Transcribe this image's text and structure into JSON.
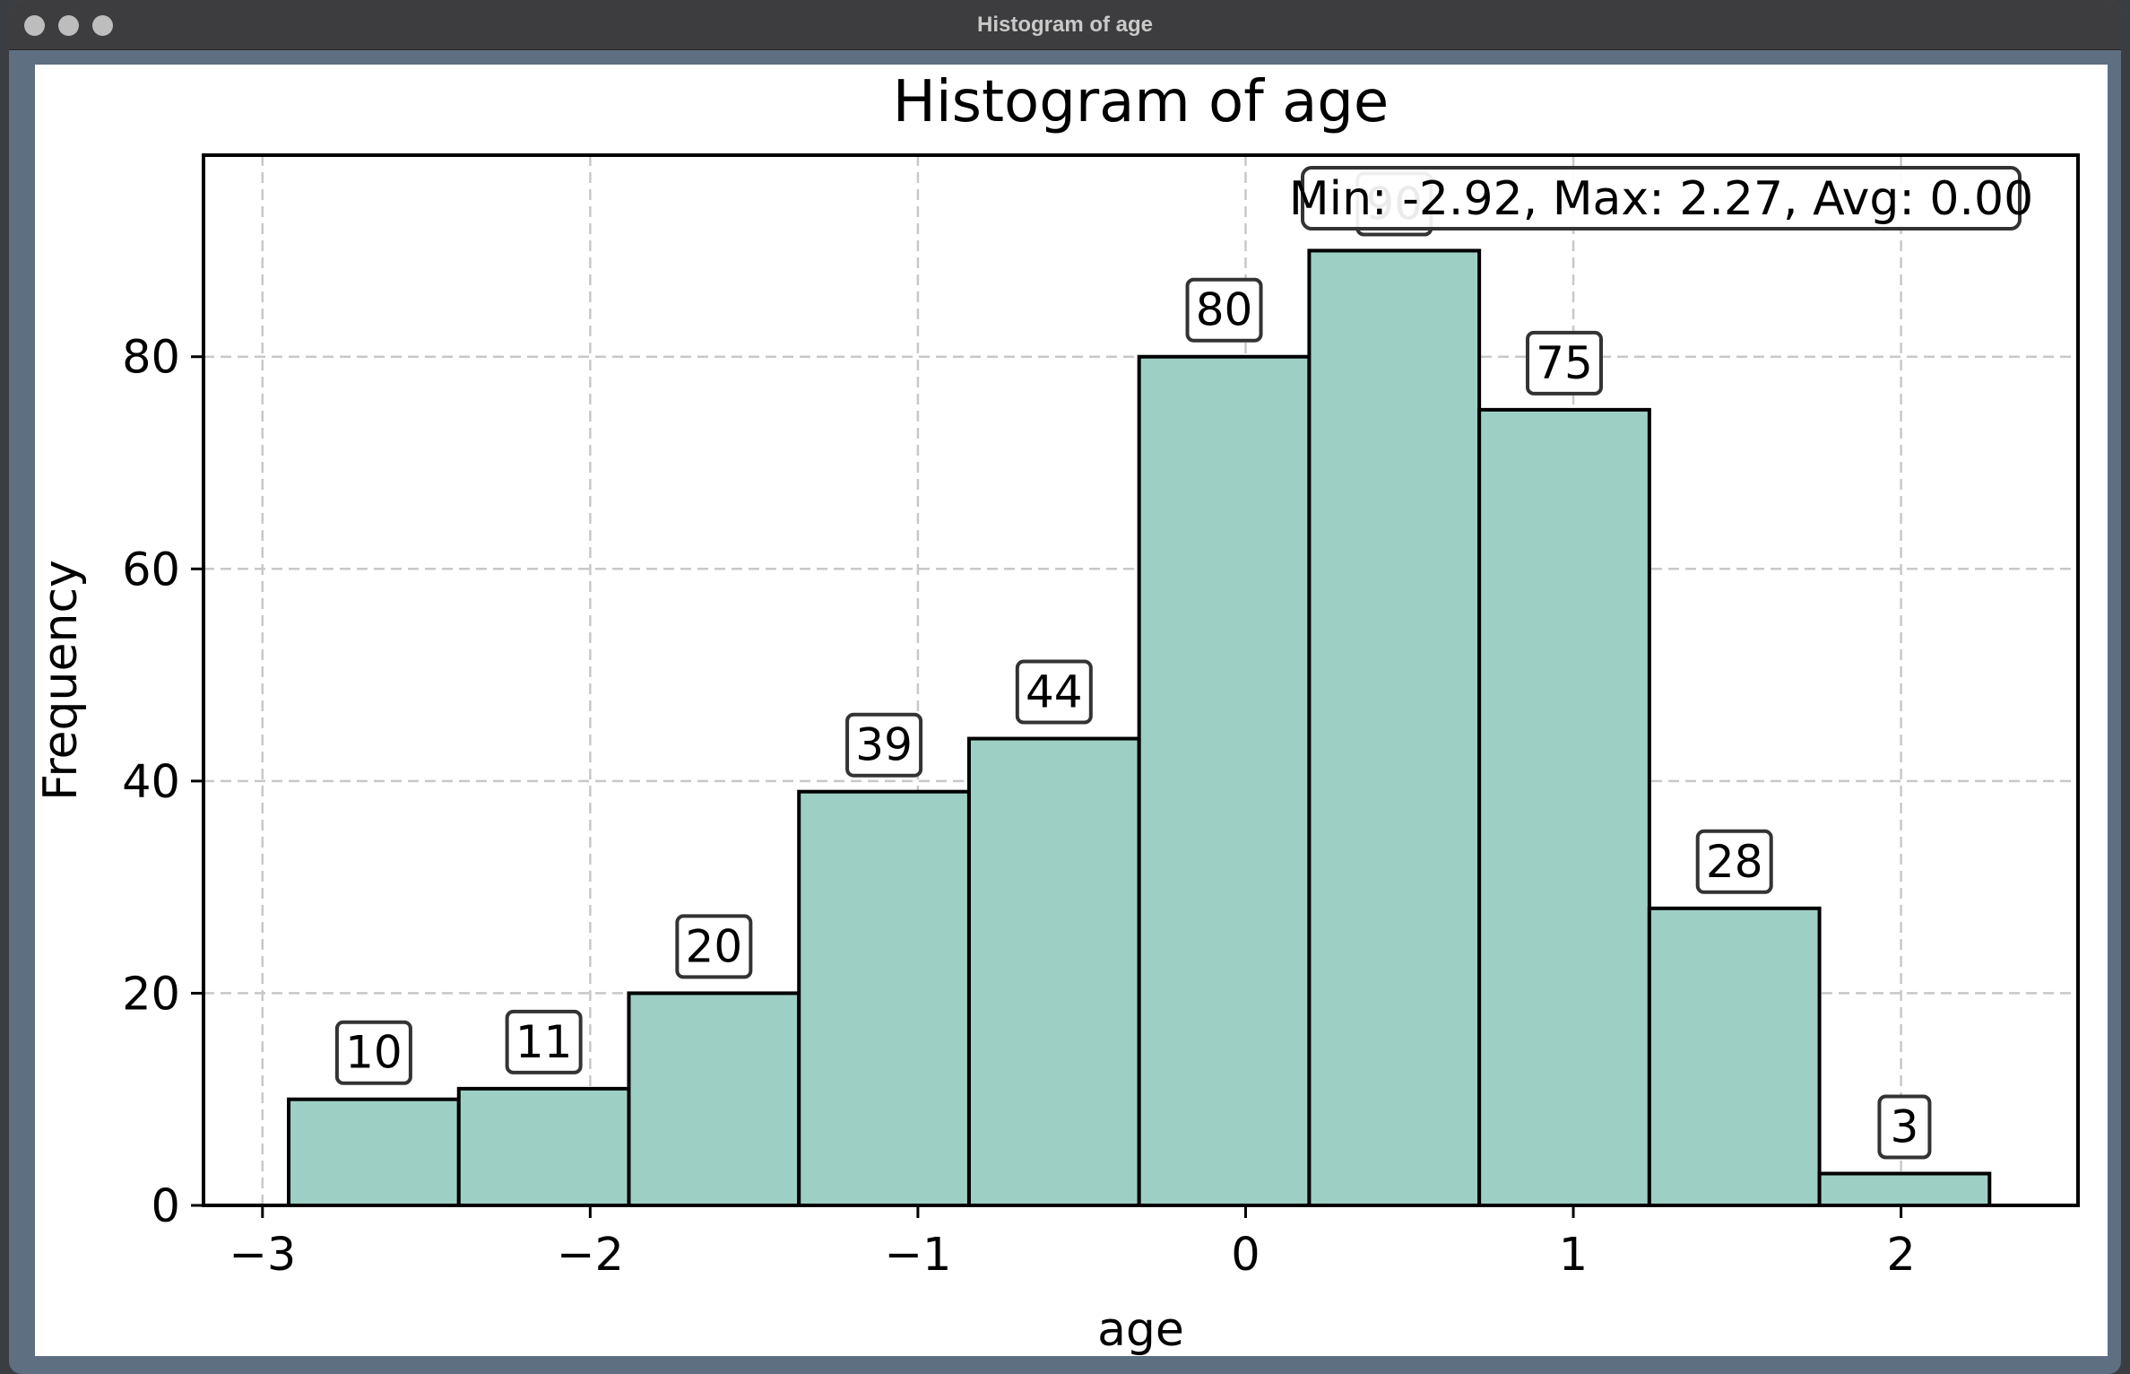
{
  "window": {
    "title": "Histogram of age"
  },
  "colors": {
    "bar_fill": "#9ecfc5",
    "bar_edge": "#000000",
    "grid": "#c8c8c8"
  },
  "chart_data": {
    "type": "bar",
    "title": "Histogram of age",
    "xlabel": "age",
    "ylabel": "Frequency",
    "bins": [
      {
        "start": -2.92,
        "end": -2.401,
        "count": 10
      },
      {
        "start": -2.401,
        "end": -1.882,
        "count": 11
      },
      {
        "start": -1.882,
        "end": -1.363,
        "count": 20
      },
      {
        "start": -1.363,
        "end": -0.844,
        "count": 39
      },
      {
        "start": -0.844,
        "end": -0.325,
        "count": 44
      },
      {
        "start": -0.325,
        "end": 0.194,
        "count": 80
      },
      {
        "start": 0.194,
        "end": 0.713,
        "count": 90
      },
      {
        "start": 0.713,
        "end": 1.232,
        "count": 75
      },
      {
        "start": 1.232,
        "end": 1.751,
        "count": 28
      },
      {
        "start": 1.751,
        "end": 2.27,
        "count": 3
      }
    ],
    "xticks": [
      -3,
      -2,
      -1,
      0,
      1,
      2
    ],
    "xtick_labels": [
      "−3",
      "−2",
      "−1",
      "0",
      "1",
      "2"
    ],
    "yticks": [
      0,
      20,
      40,
      60,
      80
    ],
    "yticks_labels": [
      "0",
      "20",
      "40",
      "60",
      "80"
    ],
    "xlim": [
      -3.18,
      2.54
    ],
    "ylim": [
      0,
      99
    ],
    "grid": true,
    "annotation": "Min: -2.92, Max: 2.27, Avg: 0.00",
    "annotation_position": "top-right"
  }
}
